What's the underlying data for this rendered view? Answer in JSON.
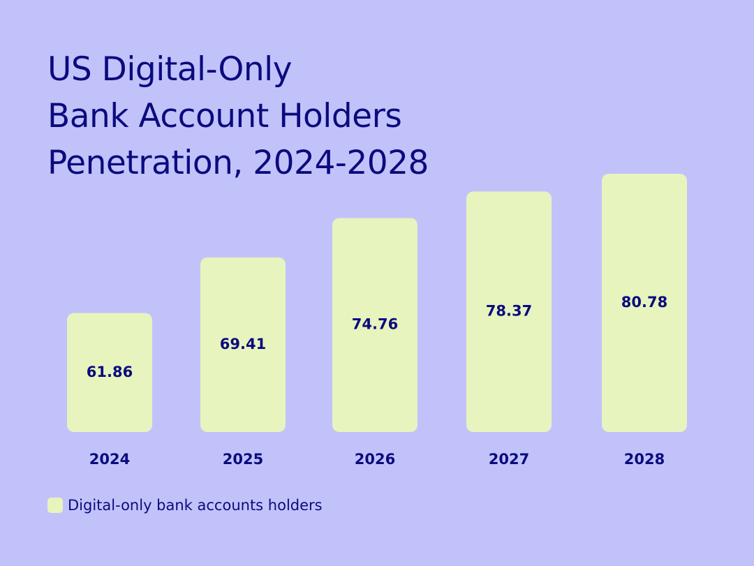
{
  "chart_data": {
    "type": "bar",
    "title_lines": [
      "US Digital-Only",
      "Bank Account Holders",
      "Penetration, 2024-2028"
    ],
    "categories": [
      "2024",
      "2025",
      "2026",
      "2027",
      "2028"
    ],
    "series": [
      {
        "name": "Digital-only bank accounts holders",
        "values": [
          61.86,
          69.41,
          74.76,
          78.37,
          80.78
        ],
        "value_labels": [
          "61.86",
          "69.41",
          "74.76",
          "78.37",
          "80.78"
        ]
      }
    ],
    "bar_color": "#e7f4bd",
    "background_color": "#c2c2fb",
    "text_color": "#0b0b7e",
    "grid": false,
    "legend": "bottom-left"
  }
}
